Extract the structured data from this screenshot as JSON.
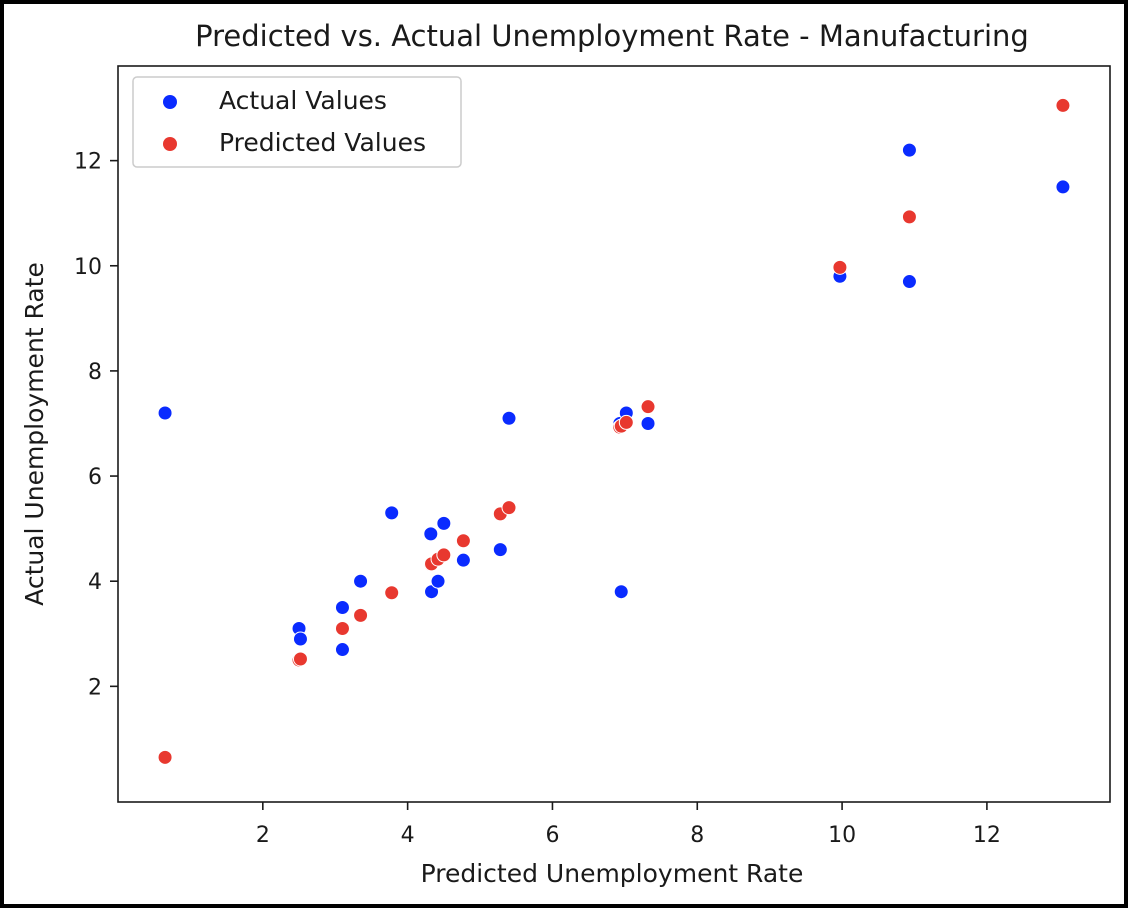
{
  "chart_data": {
    "type": "scatter",
    "title": "Predicted vs. Actual Unemployment Rate - Manufacturing",
    "xlabel": "Predicted Unemployment Rate",
    "ylabel": "Actual Unemployment Rate",
    "xlim": [
      0.0,
      13.7
    ],
    "ylim": [
      -0.2,
      13.8
    ],
    "xticks": [
      2,
      4,
      6,
      8,
      10,
      12
    ],
    "yticks": [
      2,
      4,
      6,
      8,
      10,
      12
    ],
    "grid": false,
    "legend_position": "top-left",
    "series": [
      {
        "name": "Actual Values",
        "color": "#0a2bff",
        "points": [
          {
            "x": 0.65,
            "y": 7.2
          },
          {
            "x": 2.5,
            "y": 3.1
          },
          {
            "x": 2.52,
            "y": 2.9
          },
          {
            "x": 3.1,
            "y": 3.5
          },
          {
            "x": 3.1,
            "y": 2.7
          },
          {
            "x": 3.35,
            "y": 4.0
          },
          {
            "x": 3.78,
            "y": 5.3
          },
          {
            "x": 4.32,
            "y": 4.9
          },
          {
            "x": 4.33,
            "y": 3.8
          },
          {
            "x": 4.42,
            "y": 4.0
          },
          {
            "x": 4.5,
            "y": 5.1
          },
          {
            "x": 4.77,
            "y": 4.4
          },
          {
            "x": 5.28,
            "y": 4.6
          },
          {
            "x": 5.4,
            "y": 7.1
          },
          {
            "x": 6.93,
            "y": 7.0
          },
          {
            "x": 6.95,
            "y": 3.8
          },
          {
            "x": 7.02,
            "y": 7.2
          },
          {
            "x": 7.32,
            "y": 7.0
          },
          {
            "x": 9.97,
            "y": 9.8
          },
          {
            "x": 10.93,
            "y": 12.2
          },
          {
            "x": 10.93,
            "y": 9.7
          },
          {
            "x": 13.05,
            "y": 11.5
          }
        ]
      },
      {
        "name": "Predicted Values",
        "color": "#e8382f",
        "points": [
          {
            "x": 0.65,
            "y": 0.65
          },
          {
            "x": 2.5,
            "y": 2.5
          },
          {
            "x": 2.52,
            "y": 2.52
          },
          {
            "x": 3.1,
            "y": 3.1
          },
          {
            "x": 3.1,
            "y": 3.1
          },
          {
            "x": 3.35,
            "y": 3.35
          },
          {
            "x": 3.78,
            "y": 3.78
          },
          {
            "x": 4.32,
            "y": 4.32
          },
          {
            "x": 4.33,
            "y": 4.33
          },
          {
            "x": 4.42,
            "y": 4.42
          },
          {
            "x": 4.5,
            "y": 4.5
          },
          {
            "x": 4.77,
            "y": 4.77
          },
          {
            "x": 5.28,
            "y": 5.28
          },
          {
            "x": 5.4,
            "y": 5.4
          },
          {
            "x": 6.93,
            "y": 6.93
          },
          {
            "x": 6.95,
            "y": 6.95
          },
          {
            "x": 7.02,
            "y": 7.02
          },
          {
            "x": 7.32,
            "y": 7.32
          },
          {
            "x": 9.97,
            "y": 9.97
          },
          {
            "x": 10.93,
            "y": 10.93
          },
          {
            "x": 10.93,
            "y": 10.93
          },
          {
            "x": 13.05,
            "y": 13.05
          }
        ]
      }
    ]
  }
}
